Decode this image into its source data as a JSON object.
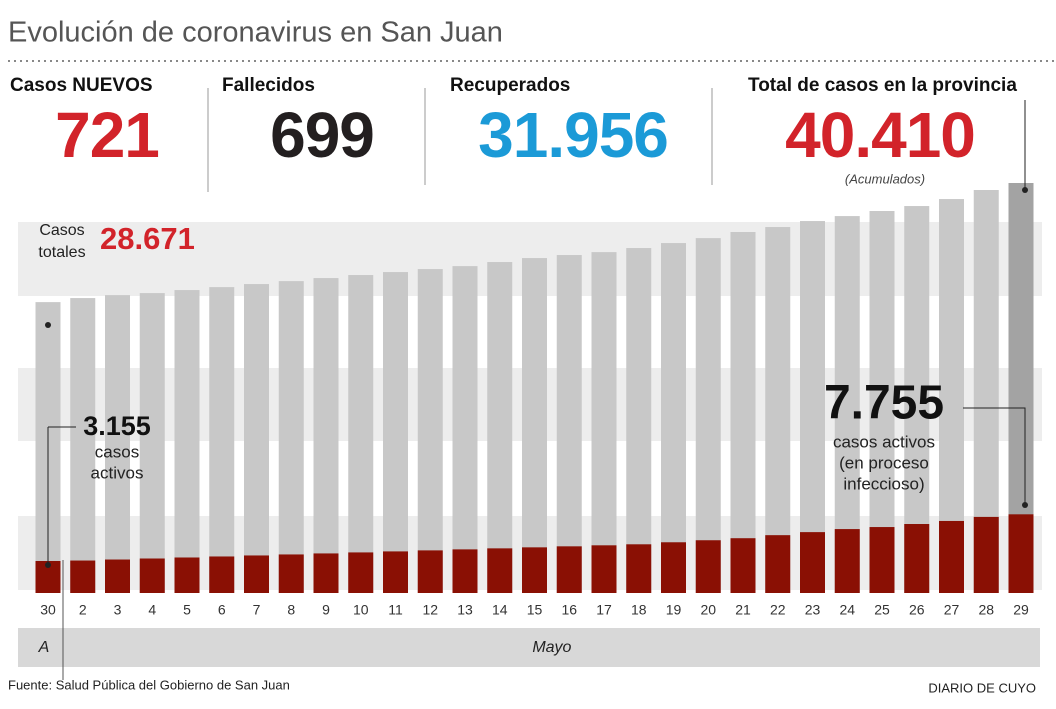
{
  "chart_data": {
    "type": "bar",
    "title": "Evolución de coronavirus en San Juan",
    "stats": [
      {
        "label": "Casos NUEVOS",
        "value": "721",
        "color": "#d2232a"
      },
      {
        "label": "Fallecidos",
        "value": "699",
        "color": "#231f20"
      },
      {
        "label": "Recuperados",
        "value": "31.956",
        "color": "#1b9ad7"
      },
      {
        "label": "Total de casos en la provincia",
        "value": "40.410",
        "color": "#d2232a",
        "note": "(Acumulados)"
      }
    ],
    "categories": [
      "30",
      "2",
      "3",
      "4",
      "5",
      "6",
      "7",
      "8",
      "9",
      "10",
      "11",
      "12",
      "13",
      "14",
      "15",
      "16",
      "17",
      "18",
      "19",
      "20",
      "21",
      "22",
      "23",
      "24",
      "25",
      "26",
      "27",
      "28",
      "29"
    ],
    "month_groups": [
      {
        "label": "A",
        "start": 0,
        "end": 0
      },
      {
        "label": "Mayo",
        "start": 1,
        "end": 28
      }
    ],
    "series": [
      {
        "name": "Casos totales",
        "color": "#c8c8c8",
        "last_color": "#a3a3a3",
        "values": [
          28671,
          29070,
          29360,
          29560,
          29860,
          30150,
          30450,
          30740,
          31040,
          31340,
          31630,
          31930,
          32220,
          32620,
          33010,
          33310,
          33600,
          34000,
          34490,
          34980,
          35580,
          36070,
          36660,
          37150,
          37650,
          38140,
          38830,
          39720,
          40410
        ],
        "value_labels": [
          "28.671",
          null,
          null,
          null,
          null,
          null,
          null,
          null,
          null,
          null,
          null,
          null,
          null,
          null,
          null,
          null,
          null,
          null,
          null,
          null,
          null,
          null,
          null,
          null,
          null,
          null,
          null,
          null,
          null
        ]
      },
      {
        "name": "Casos activos",
        "color": "#8a1004",
        "values": [
          3155,
          3200,
          3300,
          3400,
          3500,
          3600,
          3700,
          3800,
          3900,
          4000,
          4100,
          4200,
          4300,
          4400,
          4500,
          4600,
          4700,
          4800,
          5000,
          5200,
          5400,
          5700,
          6000,
          6300,
          6500,
          6800,
          7100,
          7500,
          7755
        ],
        "value_labels": [
          "3.155",
          null,
          null,
          null,
          null,
          null,
          null,
          null,
          null,
          null,
          null,
          null,
          null,
          null,
          null,
          null,
          null,
          null,
          null,
          null,
          null,
          null,
          null,
          null,
          null,
          null,
          null,
          null,
          "7.755"
        ]
      }
    ],
    "annotations": {
      "total_label": [
        "Casos",
        "totales"
      ],
      "active_label_first": [
        "casos",
        "activos"
      ],
      "active_label_last": [
        "casos activos",
        "(en proceso",
        "infeccioso)"
      ]
    },
    "source": "Fuente: Salud Pública del Gobierno de San Juan",
    "credit": "DIARIO DE CUYO"
  }
}
